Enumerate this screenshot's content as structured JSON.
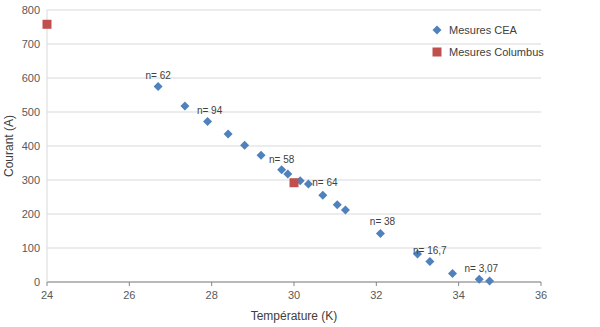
{
  "chart_data": {
    "type": "scatter",
    "x_label": "Température (K)",
    "y_label": "Courant (A)",
    "xlim": [
      24,
      36
    ],
    "xticks": [
      24,
      26,
      28,
      30,
      32,
      34,
      36
    ],
    "ylim": [
      0,
      800
    ],
    "yticks": [
      0,
      100,
      200,
      300,
      400,
      500,
      600,
      700,
      800
    ],
    "grid": true,
    "legend": "top-right",
    "series": [
      {
        "name": "Mesures CEA",
        "color": "#4f81bd",
        "marker": "diamond",
        "x": [
          26.7,
          27.35,
          27.9,
          28.4,
          28.8,
          29.2,
          29.7,
          29.85,
          30.15,
          30.35,
          30.7,
          31.05,
          31.25,
          32.1,
          33.0,
          33.3,
          33.85,
          34.5,
          34.75
        ],
        "values": [
          575,
          518,
          472,
          435,
          402,
          373,
          330,
          318,
          298,
          288,
          255,
          227,
          212,
          143,
          82,
          60,
          25,
          8,
          3
        ]
      },
      {
        "name": "Mesures Columbus",
        "color": "#c0504d",
        "marker": "square",
        "x": [
          24,
          30
        ],
        "values": [
          758,
          292
        ]
      }
    ],
    "annotations": [
      {
        "text": "n= 62",
        "x": 26.7,
        "y": 610
      },
      {
        "text": "n= 94",
        "x": 27.95,
        "y": 505
      },
      {
        "text": "n= 58",
        "x": 29.7,
        "y": 362
      },
      {
        "text": "n= 64",
        "x": 30.75,
        "y": 295
      },
      {
        "text": "n= 38",
        "x": 32.15,
        "y": 178
      },
      {
        "text": "n= 16,7",
        "x": 33.3,
        "y": 95
      },
      {
        "text": "n= 3,07",
        "x": 34.55,
        "y": 42
      }
    ]
  }
}
